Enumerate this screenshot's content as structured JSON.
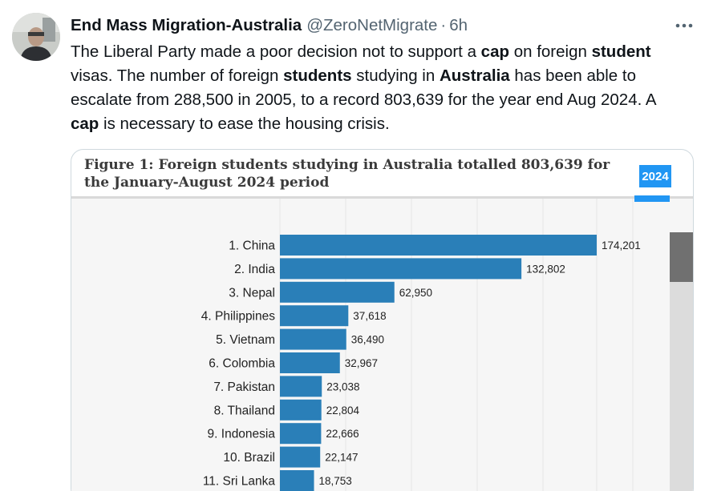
{
  "tweet": {
    "author_name": "End Mass Migration-Australia",
    "author_handle": "@ZeroNetMigrate",
    "separator": "·",
    "time": "6h",
    "text_segments": [
      {
        "text": "The Liberal Party made a poor decision not to support a ",
        "bold": false
      },
      {
        "text": "cap",
        "bold": true
      },
      {
        "text": " on foreign ",
        "bold": false
      },
      {
        "text": "student",
        "bold": true
      },
      {
        "text": " visas. The number of foreign ",
        "bold": false
      },
      {
        "text": "students",
        "bold": true
      },
      {
        "text": " studying in ",
        "bold": false
      },
      {
        "text": "Australia",
        "bold": true
      },
      {
        "text": " has been able to escalate from 288,500 in 2005, to a record 803,639 for the year end Aug 2024. A ",
        "bold": false
      },
      {
        "text": "cap",
        "bold": true
      },
      {
        "text": " is necessary to ease the housing crisis.",
        "bold": false
      }
    ]
  },
  "icons": {
    "more": "more-horizontal-icon",
    "avatar": "profile-photo"
  },
  "figure": {
    "title_line1": "Figure 1: Foreign students studying in Australia totalled 803,639 for",
    "title_line2": "the January-August 2024 period",
    "year_label": "2024"
  },
  "colors": {
    "bar": "#2a7fb8",
    "accent": "#2196f3",
    "handle": "#536471",
    "text": "#0f1419"
  },
  "chart_data": {
    "type": "bar",
    "orientation": "horizontal",
    "categories": [
      "1. China",
      "2. India",
      "3. Nepal",
      "4. Philippines",
      "5. Vietnam",
      "6. Colombia",
      "7. Pakistan",
      "8. Thailand",
      "9. Indonesia",
      "10. Brazil",
      "11. Sri Lanka"
    ],
    "values": [
      174201,
      132802,
      62950,
      37618,
      36490,
      32967,
      23038,
      22804,
      22666,
      22147,
      18753
    ],
    "value_labels": [
      "174,201",
      "132,802",
      "62,950",
      "37,618",
      "36,490",
      "32,967",
      "23,038",
      "22,804",
      "22,666",
      "22,147",
      "18,753"
    ],
    "title": "Figure 1: Foreign students studying in Australia totalled 803,639 for the January-August 2024 period",
    "xlabel": "",
    "ylabel": "",
    "xlim": [
      0,
      174201
    ],
    "grid": true
  }
}
